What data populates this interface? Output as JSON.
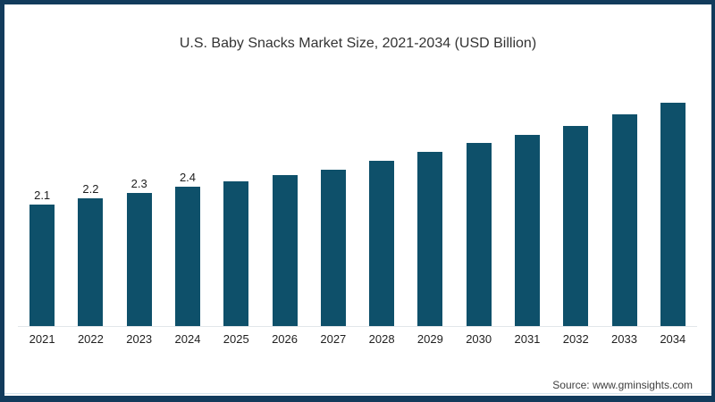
{
  "page": {
    "title": "U.S. Baby Snacks Market Size, 2021-2034 (USD Billion)",
    "source": "Source: www.gminsights.com"
  },
  "colors": {
    "bar": "#0E506A",
    "frame_border": "#123B5C",
    "axis_line": "#E2E6EA",
    "title_text": "#333333",
    "label_text": "#1F1F1F",
    "source_text": "#3F3F3F"
  },
  "chart_data": {
    "type": "bar",
    "title": "U.S. Baby Snacks Market Size, 2021-2034 (USD Billion)",
    "unit": "USD Billion",
    "categories": [
      "2021",
      "2022",
      "2023",
      "2024",
      "2025",
      "2026",
      "2027",
      "2028",
      "2029",
      "2030",
      "2031",
      "2032",
      "2033",
      "2034"
    ],
    "values": [
      2.1,
      2.2,
      2.3,
      2.4,
      2.5,
      2.6,
      2.7,
      2.85,
      3.0,
      3.15,
      3.3,
      3.45,
      3.65,
      3.85
    ],
    "visible_value_labels": [
      "2.1",
      "2.2",
      "2.3",
      "2.4",
      "",
      "",
      "",
      "",
      "",
      "",
      "",
      "",
      "",
      ""
    ],
    "xlabel": "",
    "ylabel": "",
    "ylim": [
      0,
      4.2
    ],
    "grid": false,
    "legend": false,
    "bar_color": "#0E506A"
  }
}
